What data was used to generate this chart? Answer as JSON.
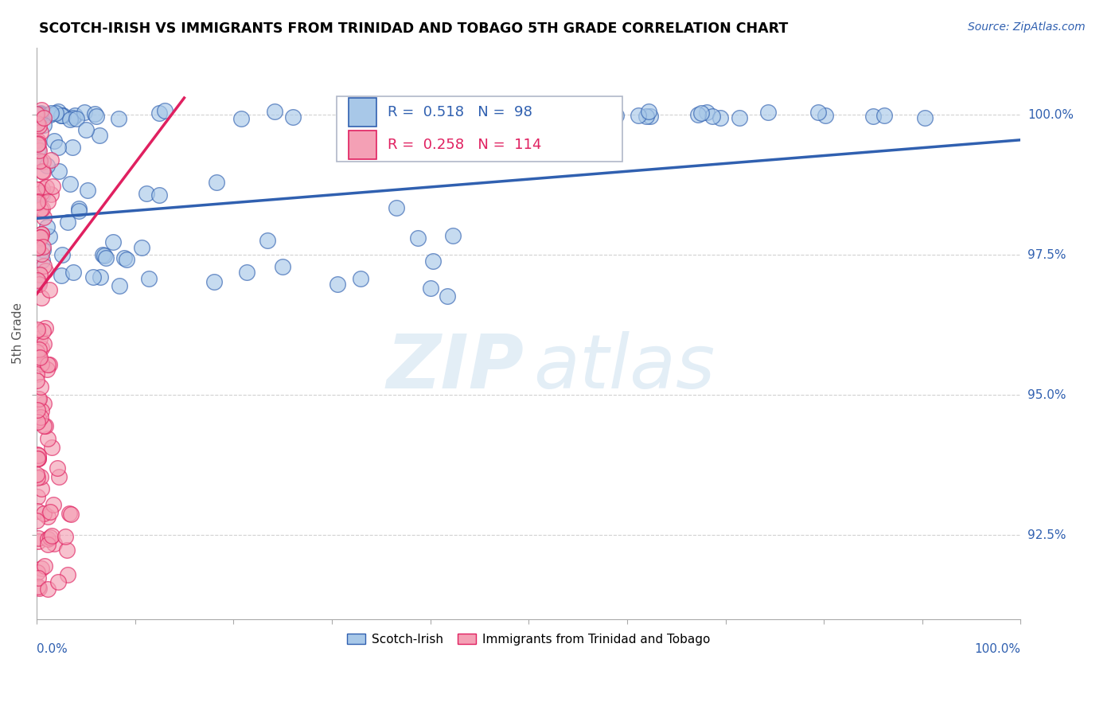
{
  "title": "SCOTCH-IRISH VS IMMIGRANTS FROM TRINIDAD AND TOBAGO 5TH GRADE CORRELATION CHART",
  "source": "Source: ZipAtlas.com",
  "ylabel": "5th Grade",
  "y_tick_labels": [
    "92.5%",
    "95.0%",
    "97.5%",
    "100.0%"
  ],
  "y_tick_values": [
    92.5,
    95.0,
    97.5,
    100.0
  ],
  "x_range": [
    0.0,
    100.0
  ],
  "y_min": 91.0,
  "y_max": 101.2,
  "legend_blue_label": "Scotch-Irish",
  "legend_pink_label": "Immigrants from Trinidad and Tobago",
  "R_blue": 0.518,
  "N_blue": 98,
  "R_pink": 0.258,
  "N_pink": 114,
  "blue_color": "#a8c8e8",
  "pink_color": "#f4a0b5",
  "trendline_blue": "#3060b0",
  "trendline_pink": "#e02060",
  "blue_trendline_x": [
    0,
    100
  ],
  "blue_trendline_y": [
    98.15,
    99.55
  ],
  "pink_trendline_x": [
    0,
    15
  ],
  "pink_trendline_y": [
    96.8,
    100.3
  ],
  "watermark_zip": "ZIP",
  "watermark_atlas": "atlas"
}
